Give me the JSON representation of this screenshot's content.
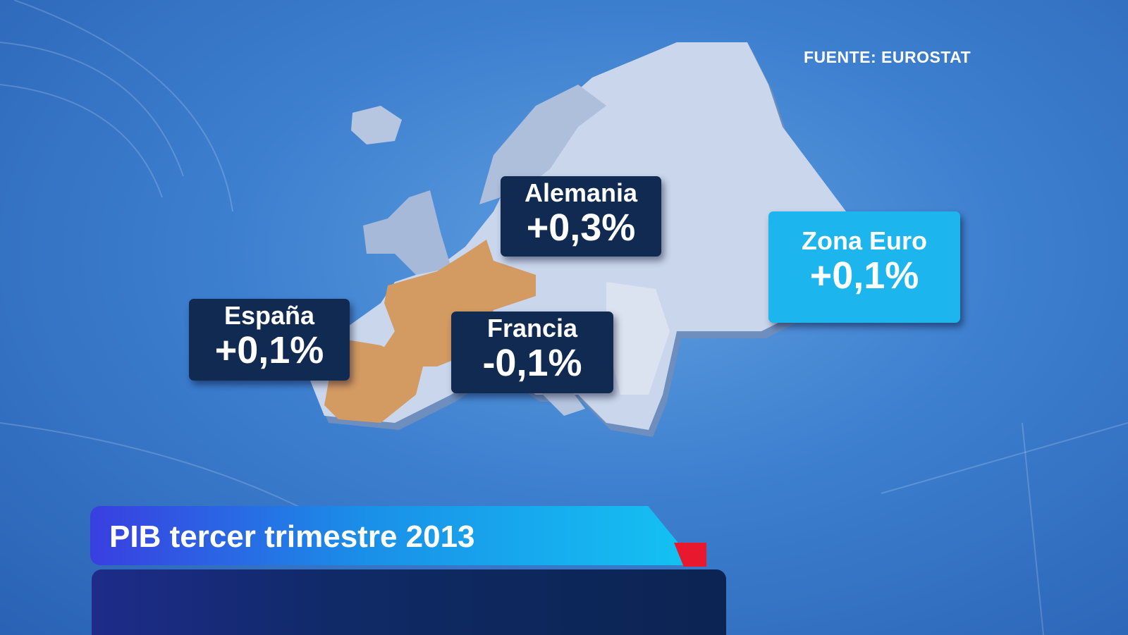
{
  "source": "FUENTE:  EUROSTAT",
  "labels": {
    "alemania": {
      "name": "Alemania",
      "value": "+0,3%"
    },
    "espana": {
      "name": "España",
      "value": "+0,1%"
    },
    "francia": {
      "name": "Francia",
      "value": "-0,1%"
    },
    "zona_euro": {
      "name": "Zona Euro",
      "value": "+0,1%"
    }
  },
  "banner": {
    "title": "PIB tercer trimestre 2013"
  },
  "colors": {
    "highlight_country": "#d39a62",
    "label_dark": "#112a52",
    "label_euro": "#1cb5ee",
    "accent_red": "#e8182e"
  }
}
